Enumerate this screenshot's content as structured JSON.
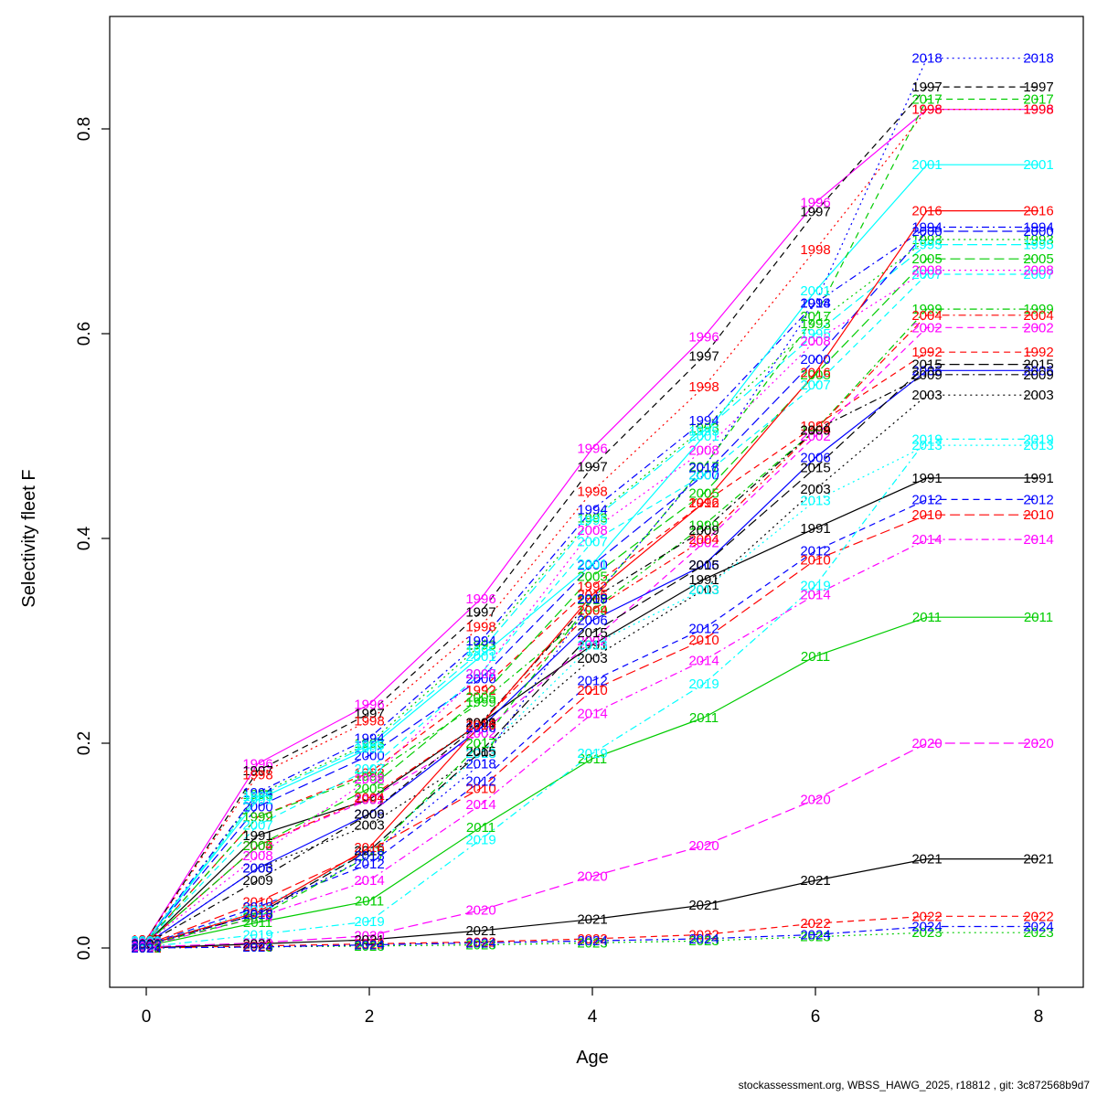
{
  "figure": {
    "xlabel": "Age",
    "ylabel": "Selectivity fleet F",
    "footer": "stockassessment.org, WBSS_HAWG_2025, r18812 , git: 3c872568b9d7"
  },
  "chart_data": {
    "type": "line",
    "title": "",
    "xlabel": "Age",
    "ylabel": "Selectivity fleet F",
    "x": [
      0,
      1,
      2,
      3,
      4,
      5,
      6,
      7,
      8
    ],
    "xticks": [
      0,
      2,
      4,
      6,
      8
    ],
    "yticks": [
      0.0,
      0.2,
      0.4,
      0.6,
      0.8
    ],
    "xlim": [
      -0.35,
      8.35
    ],
    "ylim": [
      -0.04,
      0.91
    ],
    "grid": false,
    "legend": "labels on lines (year at each point)",
    "point_label_style": "each point labelled with its series year in the series colour",
    "series": [
      {
        "name": "1991",
        "color": "#000000",
        "dash": "solid",
        "values": [
          0.005,
          0.11,
          0.145,
          0.22,
          0.296,
          0.36,
          0.41,
          0.459,
          0.459
        ]
      },
      {
        "name": "1992",
        "color": "#FF0000",
        "dash": "dashed",
        "values": [
          0.006,
          0.128,
          0.171,
          0.252,
          0.353,
          0.435,
          0.51,
          0.582,
          0.582
        ]
      },
      {
        "name": "1993",
        "color": "#00CC00",
        "dash": "dotted",
        "values": [
          0.007,
          0.15,
          0.2,
          0.296,
          0.42,
          0.508,
          0.61,
          0.692,
          0.692
        ]
      },
      {
        "name": "1994",
        "color": "#0000FF",
        "dash": "dotdash",
        "values": [
          0.007,
          0.152,
          0.205,
          0.3,
          0.428,
          0.515,
          0.63,
          0.704,
          0.704
        ]
      },
      {
        "name": "1995",
        "color": "#00FFFF",
        "dash": "longdash",
        "values": [
          0.007,
          0.148,
          0.198,
          0.29,
          0.418,
          0.505,
          0.6,
          0.687,
          0.687
        ]
      },
      {
        "name": "1996",
        "color": "#FF00FF",
        "dash": "solid",
        "values": [
          0.008,
          0.18,
          0.238,
          0.341,
          0.488,
          0.597,
          0.728,
          0.819,
          0.819
        ]
      },
      {
        "name": "1997",
        "color": "#000000",
        "dash": "dashed",
        "values": [
          0.008,
          0.173,
          0.229,
          0.328,
          0.47,
          0.578,
          0.719,
          0.841,
          0.841
        ]
      },
      {
        "name": "1998",
        "color": "#FF0000",
        "dash": "dotted",
        "values": [
          0.008,
          0.169,
          0.222,
          0.314,
          0.446,
          0.548,
          0.682,
          0.819,
          0.819
        ]
      },
      {
        "name": "1999",
        "color": "#00CC00",
        "dash": "dotdash",
        "values": [
          0.006,
          0.128,
          0.168,
          0.24,
          0.33,
          0.413,
          0.506,
          0.624,
          0.624
        ]
      },
      {
        "name": "2000",
        "color": "#0000FF",
        "dash": "longdash",
        "values": [
          0.007,
          0.138,
          0.188,
          0.263,
          0.374,
          0.462,
          0.575,
          0.7,
          0.7
        ]
      },
      {
        "name": "2001",
        "color": "#00FFFF",
        "dash": "solid",
        "values": [
          0.007,
          0.145,
          0.195,
          0.285,
          0.375,
          0.5,
          0.642,
          0.765,
          0.765
        ]
      },
      {
        "name": "2002",
        "color": "#FF00FF",
        "dash": "dashed",
        "values": [
          0.005,
          0.1,
          0.145,
          0.21,
          0.3,
          0.396,
          0.5,
          0.606,
          0.606
        ]
      },
      {
        "name": "2003",
        "color": "#000000",
        "dash": "dotted",
        "values": [
          0.004,
          0.078,
          0.12,
          0.19,
          0.283,
          0.35,
          0.448,
          0.54,
          0.54
        ]
      },
      {
        "name": "2004",
        "color": "#FF0000",
        "dash": "dotdash",
        "values": [
          0.005,
          0.1,
          0.147,
          0.22,
          0.33,
          0.399,
          0.506,
          0.618,
          0.618
        ]
      },
      {
        "name": "2005",
        "color": "#00CC00",
        "dash": "longdash",
        "values": [
          0.005,
          0.1,
          0.156,
          0.245,
          0.363,
          0.444,
          0.56,
          0.673,
          0.673
        ]
      },
      {
        "name": "2006",
        "color": "#0000FF",
        "dash": "solid",
        "values": [
          0.004,
          0.078,
          0.131,
          0.215,
          0.32,
          0.374,
          0.479,
          0.564,
          0.564
        ]
      },
      {
        "name": "2007",
        "color": "#00FFFF",
        "dash": "dashed",
        "values": [
          0.006,
          0.12,
          0.175,
          0.268,
          0.397,
          0.462,
          0.55,
          0.658,
          0.658
        ]
      },
      {
        "name": "2008",
        "color": "#FF00FF",
        "dash": "dotted",
        "values": [
          0.005,
          0.09,
          0.165,
          0.268,
          0.408,
          0.486,
          0.593,
          0.662,
          0.662
        ]
      },
      {
        "name": "2009",
        "color": "#000000",
        "dash": "dotdash",
        "values": [
          0.004,
          0.066,
          0.131,
          0.22,
          0.341,
          0.408,
          0.506,
          0.56,
          0.56
        ]
      },
      {
        "name": "2010",
        "color": "#FF0000",
        "dash": "longdash",
        "values": [
          0.003,
          0.045,
          0.095,
          0.156,
          0.252,
          0.301,
          0.379,
          0.423,
          0.423
        ]
      },
      {
        "name": "2011",
        "color": "#00CC00",
        "dash": "solid",
        "values": [
          0.002,
          0.025,
          0.046,
          0.118,
          0.185,
          0.225,
          0.285,
          0.323,
          0.323
        ]
      },
      {
        "name": "2012",
        "color": "#0000FF",
        "dash": "dashed",
        "values": [
          0.003,
          0.04,
          0.082,
          0.163,
          0.261,
          0.312,
          0.388,
          0.438,
          0.438
        ]
      },
      {
        "name": "2013",
        "color": "#00FFFF",
        "dash": "dotted",
        "values": [
          0.003,
          0.037,
          0.095,
          0.19,
          0.296,
          0.35,
          0.437,
          0.491,
          0.491
        ]
      },
      {
        "name": "2014",
        "color": "#FF00FF",
        "dash": "dotdash",
        "values": [
          0.002,
          0.03,
          0.066,
          0.14,
          0.229,
          0.281,
          0.345,
          0.399,
          0.399
        ]
      },
      {
        "name": "2015",
        "color": "#000000",
        "dash": "longdash",
        "values": [
          0.003,
          0.033,
          0.095,
          0.192,
          0.308,
          0.374,
          0.469,
          0.57,
          0.57
        ]
      },
      {
        "name": "2016",
        "color": "#FF0000",
        "dash": "solid",
        "values": [
          0.003,
          0.035,
          0.098,
          0.218,
          0.345,
          0.435,
          0.562,
          0.72,
          0.72
        ]
      },
      {
        "name": "2017",
        "color": "#00CC00",
        "dash": "dashed",
        "values": [
          0.003,
          0.03,
          0.09,
          0.2,
          0.34,
          0.47,
          0.617,
          0.829,
          0.829
        ]
      },
      {
        "name": "2018",
        "color": "#0000FF",
        "dash": "dotted",
        "values": [
          0.003,
          0.033,
          0.09,
          0.18,
          0.341,
          0.469,
          0.63,
          0.869,
          0.869
        ]
      },
      {
        "name": "2019",
        "color": "#00FFFF",
        "dash": "dotdash",
        "values": [
          0.001,
          0.013,
          0.026,
          0.106,
          0.19,
          0.258,
          0.354,
          0.497,
          0.497
        ]
      },
      {
        "name": "2020",
        "color": "#FF00FF",
        "dash": "longdash",
        "values": [
          0.001,
          0.005,
          0.012,
          0.037,
          0.07,
          0.1,
          0.145,
          0.2,
          0.2
        ]
      },
      {
        "name": "2021",
        "color": "#000000",
        "dash": "solid",
        "values": [
          0.0,
          0.004,
          0.008,
          0.017,
          0.028,
          0.042,
          0.066,
          0.087,
          0.087
        ]
      },
      {
        "name": "2022",
        "color": "#FF0000",
        "dash": "dashed",
        "values": [
          0.0,
          0.002,
          0.004,
          0.006,
          0.009,
          0.013,
          0.024,
          0.031,
          0.031
        ]
      },
      {
        "name": "2023",
        "color": "#00CC00",
        "dash": "dotted",
        "values": [
          0.0,
          0.001,
          0.002,
          0.003,
          0.005,
          0.007,
          0.011,
          0.015,
          0.015
        ]
      },
      {
        "name": "2024",
        "color": "#0000FF",
        "dash": "dotdash",
        "values": [
          0.0,
          0.001,
          0.003,
          0.005,
          0.007,
          0.009,
          0.013,
          0.021,
          0.021
        ]
      }
    ]
  }
}
